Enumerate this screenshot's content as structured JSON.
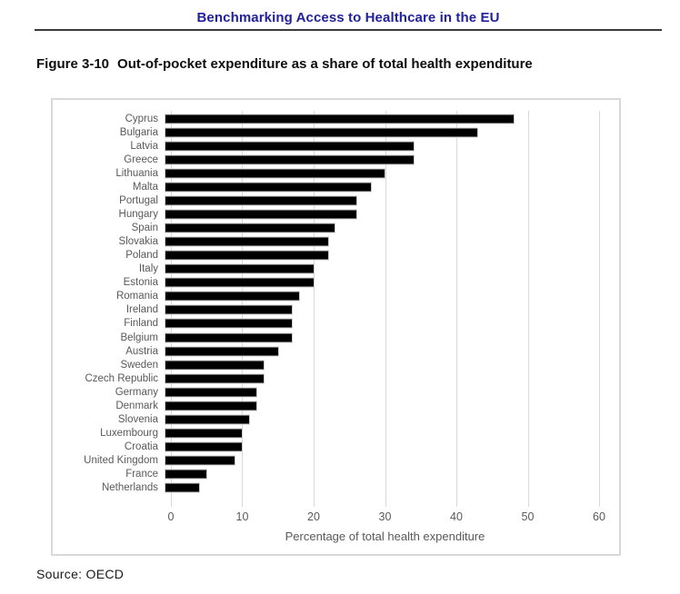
{
  "page": {
    "header_title": "Benchmarking Access to Healthcare in the EU",
    "figure_label": "Figure 3-10",
    "figure_title": "Out-of-pocket expenditure as a share of total health expenditure",
    "source": "Source: OECD"
  },
  "colors": {
    "header_blue": "#21219B",
    "bar_fill": "#000000",
    "grid_line": "#d9d9d9",
    "axis_text": "#595959",
    "chart_border": "#d9d9d9"
  },
  "chart_data": {
    "type": "bar",
    "orientation": "horizontal",
    "title": "Out-of-pocket expenditure as a share of total health expenditure",
    "categories": [
      "Cyprus",
      "Bulgaria",
      "Latvia",
      "Greece",
      "Lithuania",
      "Malta",
      "Portugal",
      "Hungary",
      "Spain",
      "Slovakia",
      "Poland",
      "Italy",
      "Estonia",
      "Romania",
      "Ireland",
      "Finland",
      "Belgium",
      "Austria",
      "Sweden",
      "Czech Republic",
      "Germany",
      "Denmark",
      "Slovenia",
      "Luxembourg",
      "Croatia",
      "United Kingdom",
      "France",
      "Netherlands"
    ],
    "values": [
      49,
      44,
      35,
      35,
      31,
      29,
      27,
      27,
      24,
      23,
      23,
      21,
      21,
      19,
      18,
      18,
      18,
      16,
      14,
      14,
      13,
      13,
      12,
      11,
      11,
      10,
      6,
      5
    ],
    "xlabel": "Percentage of total health expenditure",
    "ylabel": "",
    "xticks": [
      0,
      10,
      20,
      30,
      40,
      50,
      60
    ],
    "xlim": [
      0,
      60
    ],
    "grid": "vertical-only",
    "legend": "none",
    "bar_color": "#000000",
    "source": "OECD"
  }
}
